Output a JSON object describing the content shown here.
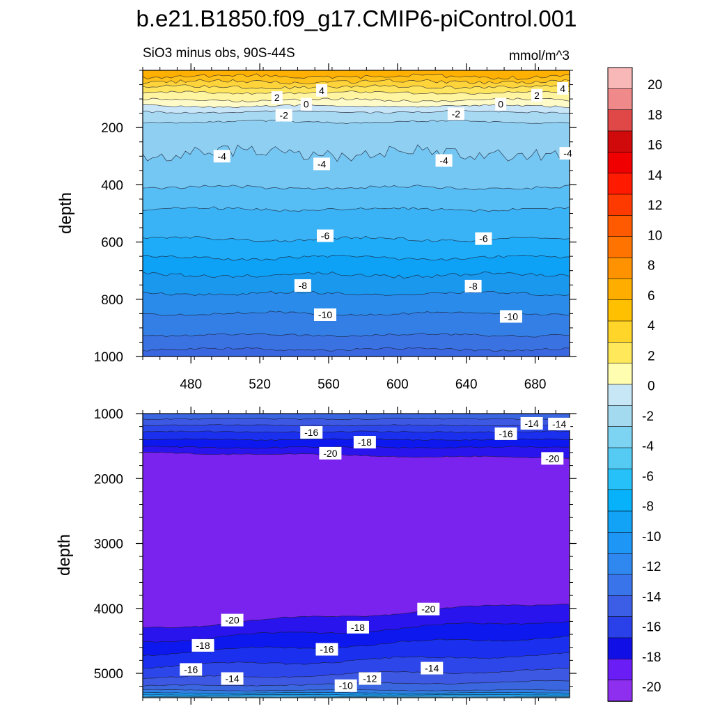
{
  "chart_data": {
    "type": "contour",
    "title": "b.e21.B1850.f09_g17.CMIP6-piControl.001",
    "subtitle_left": "SiO3 minus obs, 90S-44S",
    "subtitle_right": "mmol/m^3",
    "ylabel": "depth",
    "colorbar": {
      "levels": [
        -20,
        -18,
        -16,
        -14,
        -12,
        -10,
        -8,
        -6,
        -4,
        -2,
        0,
        2,
        4,
        6,
        8,
        10,
        12,
        14,
        16,
        18,
        20
      ],
      "tick_labels": [
        "20",
        "18",
        "16",
        "14",
        "12",
        "10",
        "8",
        "6",
        "4",
        "2",
        "0",
        "-2",
        "-4",
        "-6",
        "-8",
        "-10",
        "-12",
        "-14",
        "-16",
        "-18",
        "-20"
      ],
      "colors": [
        "#8e2ff0",
        "#6a1ef5",
        "#1010e6",
        "#2a40e8",
        "#3c5ee6",
        "#3a74ea",
        "#2f88f0",
        "#1e96f5",
        "#12a3f7",
        "#07b2fb",
        "#26c1f8",
        "#55cbf3",
        "#7dd3f2",
        "#a3daf0",
        "#c7e7f7",
        "#fffdb0",
        "#ffe95a",
        "#ffd52a",
        "#ffc000",
        "#ffae00",
        "#ff9200",
        "#ff7400",
        "#ff5a00",
        "#ff3a00",
        "#ff1a00",
        "#f00000",
        "#d00a0a",
        "#e04848",
        "#f08a8a",
        "#f9b8b8"
      ]
    },
    "panels": [
      {
        "name": "upper",
        "xlim": [
          452,
          700
        ],
        "ylim": [
          0,
          1000
        ],
        "x_ticks": [
          480,
          520,
          560,
          600,
          640,
          680
        ],
        "x_tick_labels": [
          "480",
          "520",
          "560",
          "600",
          "640",
          "680"
        ],
        "y_ticks": [
          200,
          400,
          600,
          800,
          1000
        ],
        "y_tick_labels": [
          "200",
          "400",
          "600",
          "800",
          "1000"
        ],
        "contour_labels": [
          {
            "text": "2",
            "x": 530,
            "y": 95
          },
          {
            "text": "4",
            "x": 556,
            "y": 70
          },
          {
            "text": "0",
            "x": 547,
            "y": 118
          },
          {
            "text": "-2",
            "x": 534,
            "y": 157
          },
          {
            "text": "2",
            "x": 681,
            "y": 87
          },
          {
            "text": "4",
            "x": 696,
            "y": 63
          },
          {
            "text": "0",
            "x": 660,
            "y": 118
          },
          {
            "text": "-2",
            "x": 634,
            "y": 152
          },
          {
            "text": "-4",
            "x": 498,
            "y": 300
          },
          {
            "text": "-4",
            "x": 556,
            "y": 327
          },
          {
            "text": "-4",
            "x": 627,
            "y": 315
          },
          {
            "text": "-4",
            "x": 699,
            "y": 290
          },
          {
            "text": "-6",
            "x": 558,
            "y": 578
          },
          {
            "text": "-6",
            "x": 650,
            "y": 588
          },
          {
            "text": "-8",
            "x": 545,
            "y": 752
          },
          {
            "text": "-8",
            "x": 644,
            "y": 754
          },
          {
            "text": "-10",
            "x": 558,
            "y": 854
          },
          {
            "text": "-10",
            "x": 666,
            "y": 860
          }
        ]
      },
      {
        "name": "lower",
        "xlim": [
          452,
          700
        ],
        "ylim": [
          1000,
          5375
        ],
        "x_ticks": [
          480,
          520,
          560,
          600,
          640,
          680
        ],
        "y_ticks": [
          1000,
          2000,
          3000,
          4000,
          5000
        ],
        "y_tick_labels": [
          "1000",
          "2000",
          "3000",
          "4000",
          "5000"
        ],
        "contour_labels": [
          {
            "text": "-16",
            "x": 550,
            "y": 1290
          },
          {
            "text": "-18",
            "x": 581,
            "y": 1440
          },
          {
            "text": "-20",
            "x": 561,
            "y": 1610
          },
          {
            "text": "-16",
            "x": 663,
            "y": 1310
          },
          {
            "text": "-14",
            "x": 678,
            "y": 1150
          },
          {
            "text": "-14",
            "x": 694,
            "y": 1160
          },
          {
            "text": "-20",
            "x": 690,
            "y": 1690
          },
          {
            "text": "-20",
            "x": 504,
            "y": 4180
          },
          {
            "text": "-20",
            "x": 618,
            "y": 4010
          },
          {
            "text": "-18",
            "x": 487,
            "y": 4570
          },
          {
            "text": "-18",
            "x": 577,
            "y": 4290
          },
          {
            "text": "-16",
            "x": 480,
            "y": 4940
          },
          {
            "text": "-16",
            "x": 559,
            "y": 4630
          },
          {
            "text": "-14",
            "x": 504,
            "y": 5080
          },
          {
            "text": "-14",
            "x": 620,
            "y": 4920
          },
          {
            "text": "-12",
            "x": 584,
            "y": 5080
          },
          {
            "text": "-10",
            "x": 570,
            "y": 5190
          }
        ]
      }
    ]
  }
}
